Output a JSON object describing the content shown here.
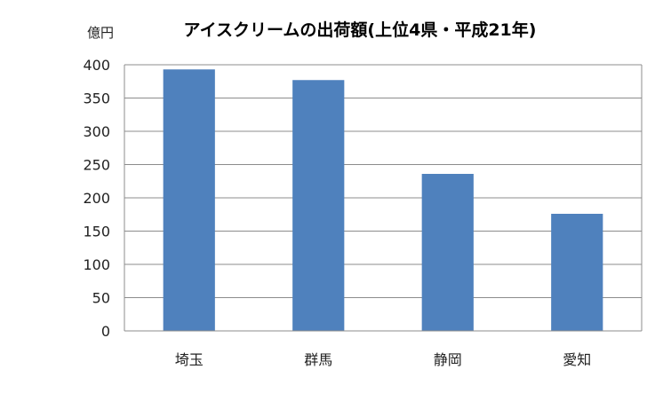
{
  "chart_data": {
    "type": "bar",
    "title": "アイスクリームの出荷額(上位4県・平成21年)",
    "ylabel": "億円",
    "xlabel": "",
    "categories": [
      "埼玉",
      "群馬",
      "静岡",
      "愛知"
    ],
    "values": [
      393,
      377,
      236,
      176
    ],
    "yticks": [
      "0",
      "50",
      "100",
      "150",
      "200",
      "250",
      "300",
      "350",
      "400"
    ],
    "ylim": [
      0,
      400
    ],
    "grid": true,
    "legend": "none",
    "bar_color": "#4F81BD"
  }
}
